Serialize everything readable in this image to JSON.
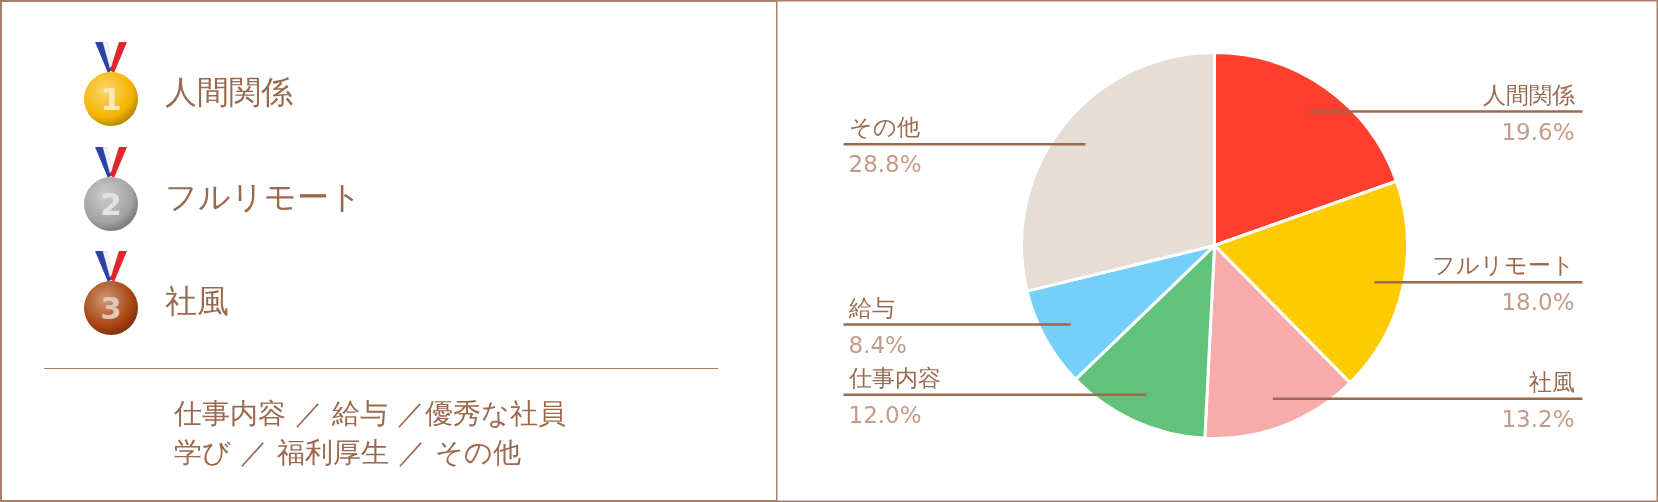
{
  "chart_data": [
    {
      "type": "other",
      "categories": [
        "人間関係",
        "フルリモート",
        "社風"
      ],
      "values": [
        1,
        2,
        3
      ],
      "data_labels": true,
      "annotations": [
        "仕事内容 ／ 給与 ／優秀な社員",
        "学び ／ 福利厚生 ／ その他"
      ]
    },
    {
      "type": "pie",
      "categories": [
        "人間関係",
        "フルリモート",
        "社風",
        "仕事内容",
        "給与",
        "その他"
      ],
      "values": [
        19.6,
        18.0,
        13.2,
        12.0,
        8.4,
        28.8
      ],
      "colors": [
        "#ff3f2e",
        "#fecb00",
        "#f7abab",
        "#61c37b",
        "#74d0f8",
        "#e5ddd6"
      ],
      "value_labels": [
        "19.6%",
        "18.0%",
        "13.2%",
        "12.0%",
        "8.4%",
        "28.8%"
      ]
    }
  ]
}
